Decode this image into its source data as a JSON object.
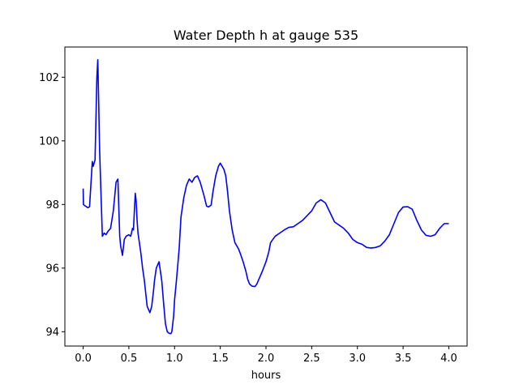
{
  "chart_data": {
    "type": "line",
    "title": "Water Depth h at gauge 535",
    "xlabel": "hours",
    "ylabel": "",
    "xlim": [
      -0.2,
      4.2
    ],
    "ylim": [
      93.55,
      102.95
    ],
    "x_ticks": [
      0.0,
      0.5,
      1.0,
      1.5,
      2.0,
      2.5,
      3.0,
      3.5,
      4.0
    ],
    "x_tick_labels": [
      "0.0",
      "0.5",
      "1.0",
      "1.5",
      "2.0",
      "2.5",
      "3.0",
      "3.5",
      "4.0"
    ],
    "y_ticks": [
      94,
      96,
      98,
      100,
      102
    ],
    "y_tick_labels": [
      "94",
      "96",
      "98",
      "100",
      "102"
    ],
    "grid": false,
    "series": [
      {
        "color": "#0000ff",
        "x": [
          0.0,
          0.003,
          0.01,
          0.05,
          0.07,
          0.1,
          0.11,
          0.13,
          0.15,
          0.16,
          0.17,
          0.18,
          0.19,
          0.21,
          0.23,
          0.25,
          0.27,
          0.3,
          0.33,
          0.36,
          0.38,
          0.4,
          0.41,
          0.43,
          0.45,
          0.47,
          0.5,
          0.52,
          0.54,
          0.55,
          0.57,
          0.58,
          0.59,
          0.6,
          0.62,
          0.63,
          0.65,
          0.67,
          0.7,
          0.73,
          0.75,
          0.77,
          0.78,
          0.8,
          0.83,
          0.86,
          0.88,
          0.9,
          0.92,
          0.94,
          0.96,
          0.97,
          0.99,
          1.0,
          1.02,
          1.05,
          1.07,
          1.1,
          1.13,
          1.16,
          1.19,
          1.22,
          1.25,
          1.28,
          1.3,
          1.32,
          1.35,
          1.37,
          1.4,
          1.42,
          1.45,
          1.48,
          1.5,
          1.54,
          1.56,
          1.58,
          1.6,
          1.63,
          1.66,
          1.7,
          1.72,
          1.75,
          1.78,
          1.8,
          1.82,
          1.85,
          1.88,
          1.9,
          1.93,
          1.96,
          2.0,
          2.03,
          2.05,
          2.1,
          2.15,
          2.2,
          2.25,
          2.3,
          2.35,
          2.4,
          2.45,
          2.5,
          2.55,
          2.6,
          2.65,
          2.7,
          2.75,
          2.8,
          2.85,
          2.9,
          2.95,
          3.0,
          3.05,
          3.1,
          3.15,
          3.2,
          3.25,
          3.3,
          3.35,
          3.4,
          3.45,
          3.5,
          3.55,
          3.6,
          3.65,
          3.7,
          3.75,
          3.8,
          3.85,
          3.9,
          3.95,
          4.0
        ],
        "y": [
          98.5,
          98.0,
          97.98,
          97.9,
          97.93,
          99.35,
          99.2,
          99.4,
          102.0,
          102.55,
          101.2,
          99.7,
          98.8,
          97.0,
          97.1,
          97.05,
          97.15,
          97.25,
          97.8,
          98.7,
          98.8,
          97.0,
          96.7,
          96.4,
          96.9,
          97.0,
          97.05,
          97.0,
          97.25,
          97.2,
          98.35,
          98.1,
          97.5,
          97.1,
          96.7,
          96.5,
          96.0,
          95.6,
          94.8,
          94.6,
          94.8,
          95.3,
          95.6,
          96.0,
          96.2,
          95.6,
          94.9,
          94.25,
          94.0,
          93.95,
          93.94,
          94.0,
          94.5,
          95.0,
          95.6,
          96.6,
          97.6,
          98.2,
          98.6,
          98.8,
          98.7,
          98.85,
          98.9,
          98.7,
          98.5,
          98.3,
          97.95,
          97.92,
          97.98,
          98.4,
          98.9,
          99.2,
          99.3,
          99.1,
          98.9,
          98.4,
          97.8,
          97.2,
          96.8,
          96.6,
          96.45,
          96.2,
          95.9,
          95.65,
          95.5,
          95.43,
          95.42,
          95.5,
          95.7,
          95.9,
          96.2,
          96.5,
          96.8,
          97.0,
          97.1,
          97.2,
          97.28,
          97.3,
          97.4,
          97.5,
          97.65,
          97.8,
          98.05,
          98.15,
          98.05,
          97.75,
          97.45,
          97.35,
          97.25,
          97.1,
          96.9,
          96.8,
          96.75,
          96.65,
          96.63,
          96.65,
          96.7,
          96.85,
          97.05,
          97.4,
          97.75,
          97.92,
          97.93,
          97.85,
          97.5,
          97.2,
          97.03,
          97.0,
          97.05,
          97.25,
          97.4,
          97.4
        ]
      }
    ]
  }
}
